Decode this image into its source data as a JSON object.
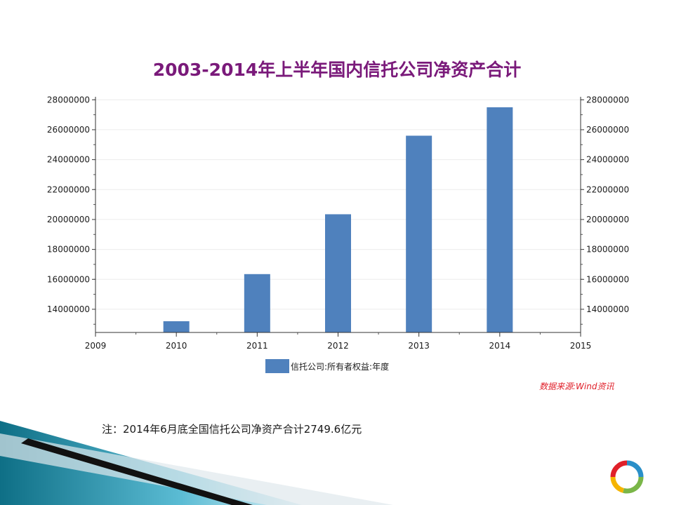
{
  "chart_data": {
    "type": "bar",
    "title": "2003-2014年上半年国内信托公司净资产合计",
    "x_ticks": [
      "2009",
      "2010",
      "2011",
      "2012",
      "2013",
      "2014",
      "2015"
    ],
    "x_range": [
      2009,
      2015
    ],
    "categories": [
      "2010",
      "2011",
      "2012",
      "2013",
      "2014"
    ],
    "series": [
      {
        "name": "信托公司:所有者权益:年度",
        "values": [
          13200000,
          16350000,
          20350000,
          25600000,
          27500000
        ]
      }
    ],
    "y_ticks": [
      "28000000",
      "26000000",
      "24000000",
      "22000000",
      "20000000",
      "18000000",
      "16000000",
      "14000000"
    ],
    "ylim": [
      12450000,
      28200000
    ],
    "grid": true,
    "axes": "left-and-right",
    "legend_position": "bottom-center",
    "colors": {
      "bar": "#4f81bd",
      "title": "#7a1a7a",
      "source": "#e0202a"
    }
  },
  "source_text": "数据来源:Wind资讯",
  "note_text": "注：2014年6月底全国信托公司净资产合计2749.6亿元",
  "logo_icon": "ring-logo-icon"
}
